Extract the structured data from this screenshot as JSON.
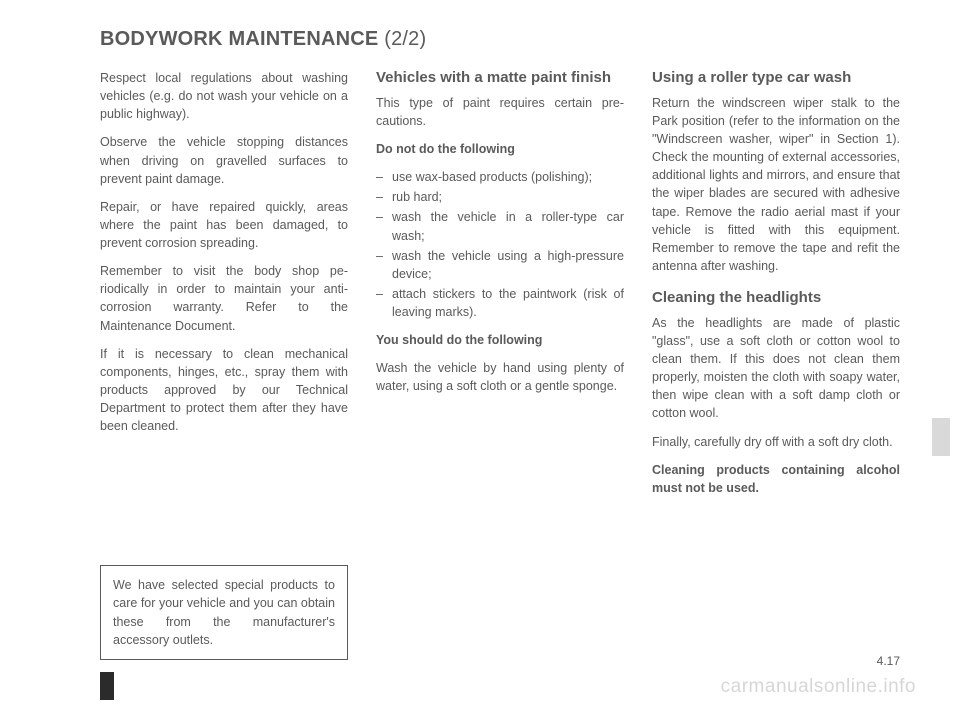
{
  "title_main": "BODYWORK MAINTENANCE",
  "title_part": "(2/2)",
  "col1": {
    "p1": "Respect local regulations about wash­ing vehicles (e.g. do not wash your ve­hicle on a public highway).",
    "p2": "Observe the vehicle stopping distances when driving on gravelled surfaces to prevent paint damage.",
    "p3": "Repair, or have repaired quickly, areas where the paint has been damaged, to prevent corrosion spreading.",
    "p4": "Remember to visit the body shop pe­riodically in order to maintain your anti-corrosion warranty. Refer to the Maintenance Document.",
    "p5": "If it is necessary to clean mechani­cal components, hinges, etc., spray them with products approved by our Technical Department to protect them after they have been cleaned.",
    "note": "We have selected special products to care for your vehicle and you can obtain these from the manufactur­er's accessory outlets."
  },
  "col2": {
    "h1": "Vehicles with a matte paint finish",
    "p1": "This type of paint requires certain pre­cautions.",
    "dont_label": "Do not do the following",
    "dont": [
      "use wax-based products (polishing);",
      "rub hard;",
      "wash the vehicle in a roller-type car wash;",
      "wash the vehicle using a high-pres­sure device;",
      "attach stickers to the paintwork (risk of leaving marks)."
    ],
    "do_label": "You should do the following",
    "p2": "Wash the vehicle by hand using plenty of water, using a soft cloth or a gentle sponge."
  },
  "col3": {
    "h1": "Using a roller type car wash",
    "p1": "Return the windscreen wiper stalk to the Park position (refer to the informa­tion on the \"Windscreen washer, wiper\" in Section 1). Check the mounting of external accessories, additional lights and mirrors, and ensure that the wiper blades are secured with adhesive tape. Remove the radio aerial mast if your vehicle is fitted with this equipment. Remember to remove the tape and refit the antenna after washing.",
    "h2": "Cleaning the headlights",
    "p2": "As the headlights are made of plastic \"glass\", use a soft cloth or cotton wool to clean them. If this does not clean them properly, moisten the cloth with soapy water, then wipe clean with a soft damp cloth or cotton wool.",
    "p3": "Finally, carefully dry off with a soft dry cloth.",
    "p4": "Cleaning products containing alco­hol must not be used."
  },
  "page_number": "4.17",
  "watermark": "carmanualsonline.info"
}
